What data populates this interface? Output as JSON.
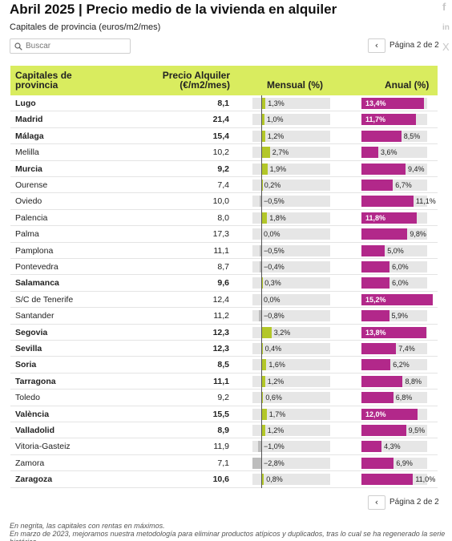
{
  "title": "Abril 2025 | Precio medio de la vivienda en alquiler",
  "subtitle": "Capitales de provincia (euros/m2/mes)",
  "share": {
    "icons": [
      "facebook-icon",
      "linkedin-icon",
      "x-twitter-icon"
    ],
    "glyphs": [
      "f",
      "in",
      "X"
    ]
  },
  "search": {
    "placeholder": "Buscar",
    "value": ""
  },
  "pager": {
    "prev_glyph": "‹",
    "label": "Página 2 de 2"
  },
  "colors": {
    "header": "#d9ec5f",
    "positive": "#b3c729",
    "negative": "#bdbdbd",
    "annual": "#b2288a",
    "track": "#e6e6e6"
  },
  "chart_data": {
    "type": "table",
    "columns": [
      "Capitales de provincia",
      "Precio Alquiler (€/m2/mes)",
      "Mensual (%)",
      "Anual (%)"
    ],
    "mensual_scale": [
      -3.5,
      10
    ],
    "anual_scale": [
      0,
      17
    ],
    "rows": [
      {
        "city": "Lugo",
        "price": "8,1",
        "mensual": 1.3,
        "mensual_label": "1,3%",
        "anual": 13.4,
        "anual_label": "13,4%",
        "bold": true
      },
      {
        "city": "Madrid",
        "price": "21,4",
        "mensual": 1.0,
        "mensual_label": "1,0%",
        "anual": 11.7,
        "anual_label": "11,7%",
        "bold": true
      },
      {
        "city": "Málaga",
        "price": "15,4",
        "mensual": 1.2,
        "mensual_label": "1,2%",
        "anual": 8.5,
        "anual_label": "8,5%",
        "bold": true
      },
      {
        "city": "Melilla",
        "price": "10,2",
        "mensual": 2.7,
        "mensual_label": "2,7%",
        "anual": 3.6,
        "anual_label": "3,6%",
        "bold": false
      },
      {
        "city": "Murcia",
        "price": "9,2",
        "mensual": 1.9,
        "mensual_label": "1,9%",
        "anual": 9.4,
        "anual_label": "9,4%",
        "bold": true
      },
      {
        "city": "Ourense",
        "price": "7,4",
        "mensual": 0.2,
        "mensual_label": "0,2%",
        "anual": 6.7,
        "anual_label": "6,7%",
        "bold": false
      },
      {
        "city": "Oviedo",
        "price": "10,0",
        "mensual": -0.5,
        "mensual_label": "−0,5%",
        "anual": 11.1,
        "anual_label": "11,1%",
        "bold": false
      },
      {
        "city": "Palencia",
        "price": "8,0",
        "mensual": 1.8,
        "mensual_label": "1,8%",
        "anual": 11.8,
        "anual_label": "11,8%",
        "bold": false
      },
      {
        "city": "Palma",
        "price": "17,3",
        "mensual": 0.0,
        "mensual_label": "0,0%",
        "anual": 9.8,
        "anual_label": "9,8%",
        "bold": false
      },
      {
        "city": "Pamplona",
        "price": "11,1",
        "mensual": -0.5,
        "mensual_label": "−0,5%",
        "anual": 5.0,
        "anual_label": "5,0%",
        "bold": false
      },
      {
        "city": "Pontevedra",
        "price": "8,7",
        "mensual": -0.4,
        "mensual_label": "−0,4%",
        "anual": 6.0,
        "anual_label": "6,0%",
        "bold": false
      },
      {
        "city": "Salamanca",
        "price": "9,6",
        "mensual": 0.3,
        "mensual_label": "0,3%",
        "anual": 6.0,
        "anual_label": "6,0%",
        "bold": true
      },
      {
        "city": "S/C de Tenerife",
        "price": "12,4",
        "mensual": 0.0,
        "mensual_label": "0,0%",
        "anual": 15.2,
        "anual_label": "15,2%",
        "bold": false
      },
      {
        "city": "Santander",
        "price": "11,2",
        "mensual": -0.8,
        "mensual_label": "−0,8%",
        "anual": 5.9,
        "anual_label": "5,9%",
        "bold": false
      },
      {
        "city": "Segovia",
        "price": "12,3",
        "mensual": 3.2,
        "mensual_label": "3,2%",
        "anual": 13.8,
        "anual_label": "13,8%",
        "bold": true
      },
      {
        "city": "Sevilla",
        "price": "12,3",
        "mensual": 0.4,
        "mensual_label": "0,4%",
        "anual": 7.4,
        "anual_label": "7,4%",
        "bold": true
      },
      {
        "city": "Soria",
        "price": "8,5",
        "mensual": 1.6,
        "mensual_label": "1,6%",
        "anual": 6.2,
        "anual_label": "6,2%",
        "bold": true
      },
      {
        "city": "Tarragona",
        "price": "11,1",
        "mensual": 1.2,
        "mensual_label": "1,2%",
        "anual": 8.8,
        "anual_label": "8,8%",
        "bold": true
      },
      {
        "city": "Toledo",
        "price": "9,2",
        "mensual": 0.6,
        "mensual_label": "0,6%",
        "anual": 6.8,
        "anual_label": "6,8%",
        "bold": false
      },
      {
        "city": "València",
        "price": "15,5",
        "mensual": 1.7,
        "mensual_label": "1,7%",
        "anual": 12.0,
        "anual_label": "12,0%",
        "bold": true
      },
      {
        "city": "Valladolid",
        "price": "8,9",
        "mensual": 1.2,
        "mensual_label": "1,2%",
        "anual": 9.5,
        "anual_label": "9,5%",
        "bold": true
      },
      {
        "city": "Vitoria-Gasteiz",
        "price": "11,9",
        "mensual": -1.0,
        "mensual_label": "−1,0%",
        "anual": 4.3,
        "anual_label": "4,3%",
        "bold": false
      },
      {
        "city": "Zamora",
        "price": "7,1",
        "mensual": -2.8,
        "mensual_label": "−2,8%",
        "anual": 6.9,
        "anual_label": "6,9%",
        "bold": false
      },
      {
        "city": "Zaragoza",
        "price": "10,6",
        "mensual": 0.8,
        "mensual_label": "0,8%",
        "anual": 11.0,
        "anual_label": "11,0%",
        "bold": true
      }
    ]
  },
  "header": {
    "city": "Capitales de provincia",
    "price": "Precio Alquiler (€/m2/mes)",
    "mensual": "Mensual (%)",
    "anual": "Anual (%)"
  },
  "footnotes": [
    "En negrita, las capitales con rentas en máximos.",
    "En marzo de 2023, mejoramos nuestra metodología para eliminar productos atípicos y duplicados, tras lo cual se ha regenerado la serie histórica."
  ]
}
